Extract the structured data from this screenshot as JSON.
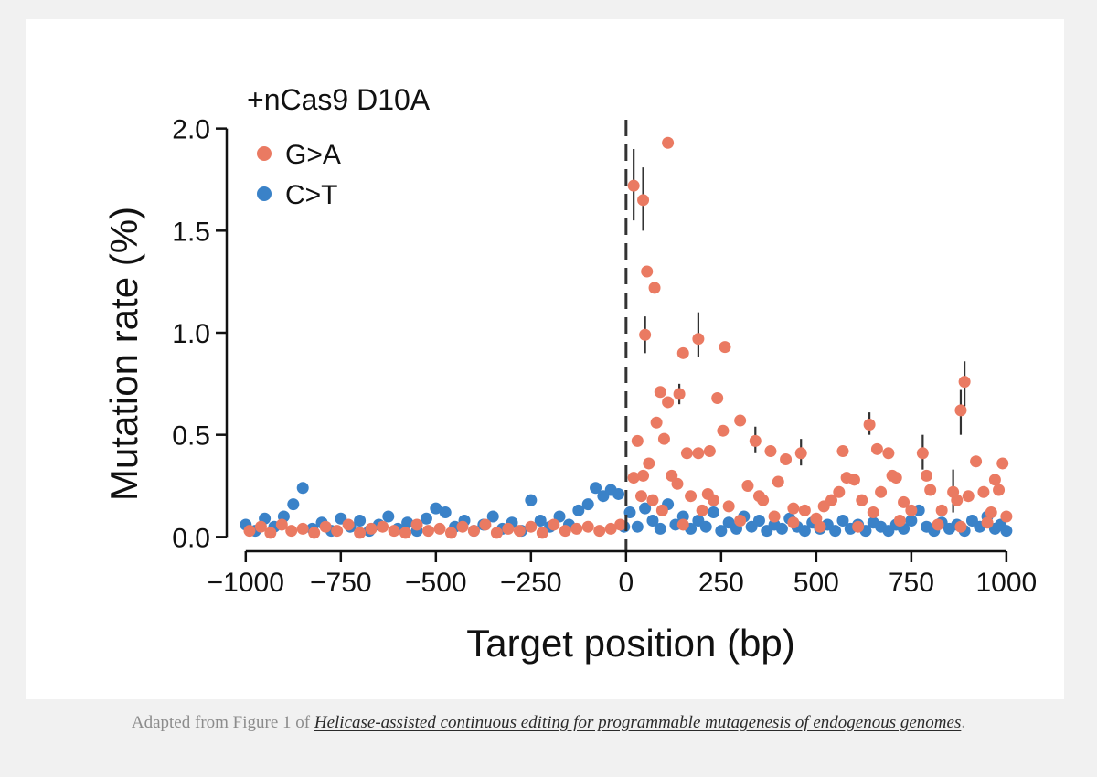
{
  "chart_data": {
    "type": "scatter",
    "title": "+nCas9 D10A",
    "xlabel": "Target position (bp)",
    "ylabel": "Mutation rate (%)",
    "xlim": [
      -1050,
      1070
    ],
    "ylim": [
      -0.07,
      2.07
    ],
    "xticks": [
      -1000,
      -750,
      -500,
      -250,
      0,
      250,
      500,
      750,
      1000
    ],
    "xtick_labels": [
      "−1000",
      "−750",
      "−500",
      "−250",
      "0",
      "250",
      "500",
      "750",
      "1000"
    ],
    "yticks": [
      0.0,
      0.5,
      1.0,
      1.5,
      2.0
    ],
    "ytick_labels": [
      "0.0",
      "0.5",
      "1.0",
      "1.5",
      "2.0"
    ],
    "reference_line": {
      "x": 0,
      "style": "dashed"
    },
    "legend_position": "top-left",
    "colors": {
      "G>A": "#ea7a62",
      "C>T": "#3a82c8"
    },
    "series": [
      {
        "name": "G>A",
        "points": [
          [
            -990,
            0.03
          ],
          [
            -960,
            0.05
          ],
          [
            -935,
            0.02
          ],
          [
            -905,
            0.06
          ],
          [
            -880,
            0.03
          ],
          [
            -850,
            0.04
          ],
          [
            -820,
            0.02
          ],
          [
            -790,
            0.05
          ],
          [
            -760,
            0.03
          ],
          [
            -730,
            0.06
          ],
          [
            -700,
            0.02
          ],
          [
            -670,
            0.04
          ],
          [
            -640,
            0.05
          ],
          [
            -610,
            0.03
          ],
          [
            -580,
            0.02
          ],
          [
            -550,
            0.06
          ],
          [
            -520,
            0.03
          ],
          [
            -490,
            0.04
          ],
          [
            -460,
            0.02
          ],
          [
            -430,
            0.05
          ],
          [
            -400,
            0.03
          ],
          [
            -370,
            0.06
          ],
          [
            -340,
            0.02
          ],
          [
            -310,
            0.04
          ],
          [
            -280,
            0.03
          ],
          [
            -250,
            0.05
          ],
          [
            -220,
            0.02
          ],
          [
            -190,
            0.06
          ],
          [
            -160,
            0.03
          ],
          [
            -130,
            0.04
          ],
          [
            -100,
            0.05
          ],
          [
            -70,
            0.03
          ],
          [
            -40,
            0.04
          ],
          [
            -15,
            0.06
          ],
          [
            20,
            1.72
          ],
          [
            45,
            1.65
          ],
          [
            110,
            1.93
          ],
          [
            55,
            1.3
          ],
          [
            75,
            1.22
          ],
          [
            50,
            0.99
          ],
          [
            150,
            0.9
          ],
          [
            190,
            0.97
          ],
          [
            260,
            0.93
          ],
          [
            90,
            0.71
          ],
          [
            110,
            0.66
          ],
          [
            240,
            0.68
          ],
          [
            30,
            0.47
          ],
          [
            80,
            0.56
          ],
          [
            100,
            0.48
          ],
          [
            140,
            0.7
          ],
          [
            300,
            0.57
          ],
          [
            340,
            0.47
          ],
          [
            380,
            0.42
          ],
          [
            400,
            0.27
          ],
          [
            420,
            0.38
          ],
          [
            460,
            0.41
          ],
          [
            220,
            0.42
          ],
          [
            190,
            0.41
          ],
          [
            160,
            0.41
          ],
          [
            255,
            0.52
          ],
          [
            640,
            0.55
          ],
          [
            570,
            0.42
          ],
          [
            660,
            0.43
          ],
          [
            690,
            0.41
          ],
          [
            780,
            0.41
          ],
          [
            890,
            0.76
          ],
          [
            880,
            0.62
          ],
          [
            920,
            0.37
          ],
          [
            990,
            0.36
          ],
          [
            20,
            0.29
          ],
          [
            45,
            0.3
          ],
          [
            60,
            0.36
          ],
          [
            40,
            0.2
          ],
          [
            70,
            0.18
          ],
          [
            95,
            0.13
          ],
          [
            120,
            0.3
          ],
          [
            135,
            0.26
          ],
          [
            170,
            0.2
          ],
          [
            200,
            0.13
          ],
          [
            215,
            0.21
          ],
          [
            230,
            0.18
          ],
          [
            270,
            0.15
          ],
          [
            320,
            0.25
          ],
          [
            350,
            0.2
          ],
          [
            360,
            0.18
          ],
          [
            390,
            0.1
          ],
          [
            440,
            0.14
          ],
          [
            470,
            0.13
          ],
          [
            500,
            0.09
          ],
          [
            520,
            0.15
          ],
          [
            540,
            0.18
          ],
          [
            560,
            0.22
          ],
          [
            580,
            0.29
          ],
          [
            600,
            0.28
          ],
          [
            620,
            0.18
          ],
          [
            650,
            0.12
          ],
          [
            670,
            0.22
          ],
          [
            700,
            0.3
          ],
          [
            710,
            0.29
          ],
          [
            730,
            0.17
          ],
          [
            750,
            0.13
          ],
          [
            790,
            0.3
          ],
          [
            800,
            0.23
          ],
          [
            830,
            0.13
          ],
          [
            860,
            0.22
          ],
          [
            870,
            0.18
          ],
          [
            900,
            0.2
          ],
          [
            940,
            0.22
          ],
          [
            960,
            0.12
          ],
          [
            970,
            0.28
          ],
          [
            980,
            0.23
          ],
          [
            1000,
            0.1
          ],
          [
            510,
            0.05
          ],
          [
            610,
            0.05
          ],
          [
            820,
            0.06
          ],
          [
            950,
            0.07
          ],
          [
            150,
            0.06
          ],
          [
            300,
            0.08
          ],
          [
            440,
            0.07
          ],
          [
            720,
            0.08
          ],
          [
            880,
            0.05
          ]
        ]
      },
      {
        "name": "C>T",
        "points": [
          [
            -1000,
            0.06
          ],
          [
            -975,
            0.03
          ],
          [
            -950,
            0.09
          ],
          [
            -925,
            0.05
          ],
          [
            -900,
            0.1
          ],
          [
            -875,
            0.16
          ],
          [
            -850,
            0.24
          ],
          [
            -825,
            0.04
          ],
          [
            -800,
            0.07
          ],
          [
            -775,
            0.03
          ],
          [
            -750,
            0.09
          ],
          [
            -725,
            0.05
          ],
          [
            -700,
            0.08
          ],
          [
            -675,
            0.03
          ],
          [
            -650,
            0.06
          ],
          [
            -625,
            0.1
          ],
          [
            -600,
            0.04
          ],
          [
            -575,
            0.07
          ],
          [
            -550,
            0.03
          ],
          [
            -525,
            0.09
          ],
          [
            -500,
            0.14
          ],
          [
            -475,
            0.12
          ],
          [
            -450,
            0.05
          ],
          [
            -425,
            0.08
          ],
          [
            -400,
            0.03
          ],
          [
            -375,
            0.06
          ],
          [
            -350,
            0.1
          ],
          [
            -325,
            0.04
          ],
          [
            -300,
            0.07
          ],
          [
            -275,
            0.03
          ],
          [
            -250,
            0.18
          ],
          [
            -225,
            0.08
          ],
          [
            -200,
            0.05
          ],
          [
            -175,
            0.1
          ],
          [
            -150,
            0.06
          ],
          [
            -125,
            0.13
          ],
          [
            -100,
            0.16
          ],
          [
            -80,
            0.24
          ],
          [
            -60,
            0.2
          ],
          [
            -40,
            0.23
          ],
          [
            -20,
            0.21
          ],
          [
            -5,
            0.05
          ],
          [
            10,
            0.12
          ],
          [
            30,
            0.05
          ],
          [
            50,
            0.14
          ],
          [
            70,
            0.08
          ],
          [
            90,
            0.04
          ],
          [
            110,
            0.16
          ],
          [
            130,
            0.06
          ],
          [
            150,
            0.1
          ],
          [
            170,
            0.04
          ],
          [
            190,
            0.08
          ],
          [
            210,
            0.05
          ],
          [
            230,
            0.12
          ],
          [
            250,
            0.03
          ],
          [
            270,
            0.07
          ],
          [
            290,
            0.04
          ],
          [
            310,
            0.1
          ],
          [
            330,
            0.05
          ],
          [
            350,
            0.08
          ],
          [
            370,
            0.03
          ],
          [
            390,
            0.06
          ],
          [
            410,
            0.04
          ],
          [
            430,
            0.09
          ],
          [
            450,
            0.05
          ],
          [
            470,
            0.03
          ],
          [
            490,
            0.07
          ],
          [
            510,
            0.04
          ],
          [
            530,
            0.06
          ],
          [
            550,
            0.03
          ],
          [
            570,
            0.08
          ],
          [
            590,
            0.04
          ],
          [
            610,
            0.06
          ],
          [
            630,
            0.03
          ],
          [
            650,
            0.07
          ],
          [
            670,
            0.05
          ],
          [
            690,
            0.03
          ],
          [
            710,
            0.06
          ],
          [
            730,
            0.04
          ],
          [
            750,
            0.08
          ],
          [
            770,
            0.13
          ],
          [
            790,
            0.05
          ],
          [
            810,
            0.03
          ],
          [
            830,
            0.07
          ],
          [
            850,
            0.04
          ],
          [
            870,
            0.06
          ],
          [
            890,
            0.03
          ],
          [
            910,
            0.08
          ],
          [
            930,
            0.05
          ],
          [
            950,
            0.1
          ],
          [
            970,
            0.04
          ],
          [
            985,
            0.06
          ],
          [
            1000,
            0.03
          ]
        ]
      }
    ],
    "error_bars": [
      {
        "series": "G>A",
        "x": 20,
        "y": 1.72,
        "low": 1.55,
        "high": 1.9
      },
      {
        "series": "G>A",
        "x": 45,
        "y": 1.65,
        "low": 1.5,
        "high": 1.81
      },
      {
        "series": "G>A",
        "x": 50,
        "y": 0.99,
        "low": 0.9,
        "high": 1.08
      },
      {
        "series": "G>A",
        "x": 190,
        "y": 0.97,
        "low": 0.88,
        "high": 1.1
      },
      {
        "series": "G>A",
        "x": 890,
        "y": 0.76,
        "low": 0.64,
        "high": 0.86
      },
      {
        "series": "G>A",
        "x": 880,
        "y": 0.62,
        "low": 0.5,
        "high": 0.72
      },
      {
        "series": "G>A",
        "x": 640,
        "y": 0.55,
        "low": 0.5,
        "high": 0.61
      },
      {
        "series": "G>A",
        "x": 780,
        "y": 0.41,
        "low": 0.33,
        "high": 0.5
      },
      {
        "series": "G>A",
        "x": 460,
        "y": 0.41,
        "low": 0.35,
        "high": 0.48
      },
      {
        "series": "G>A",
        "x": 340,
        "y": 0.47,
        "low": 0.41,
        "high": 0.54
      },
      {
        "series": "G>A",
        "x": 140,
        "y": 0.7,
        "low": 0.65,
        "high": 0.75
      },
      {
        "series": "G>A",
        "x": 860,
        "y": 0.22,
        "low": 0.12,
        "high": 0.33
      }
    ]
  },
  "caption": {
    "prefix": "Adapted from Figure 1 of ",
    "link_text": "Helicase-assisted continuous editing for programmable mutagenesis of endogenous genomes",
    "suffix": "."
  }
}
